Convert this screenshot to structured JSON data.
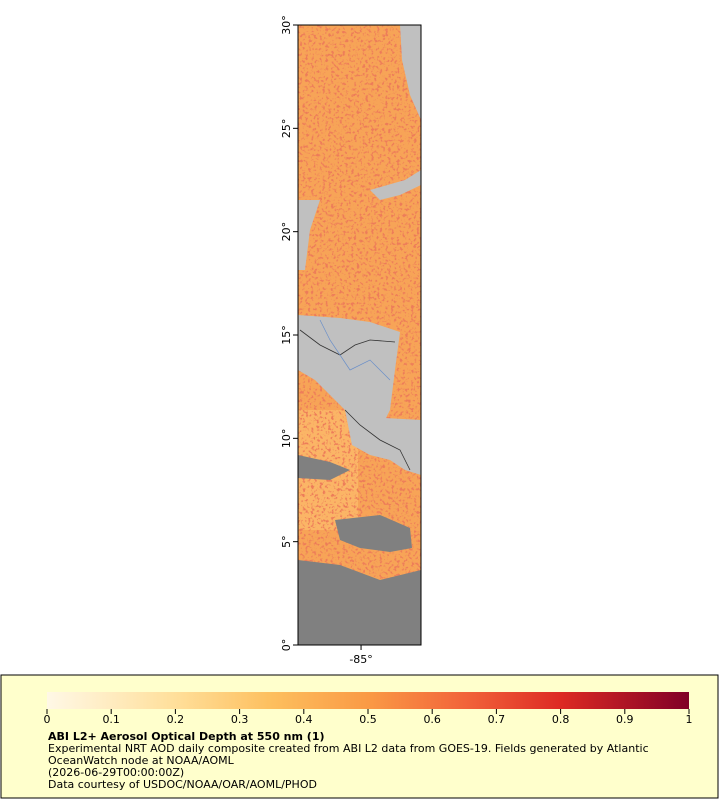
{
  "map": {
    "ylim": [
      0,
      30
    ],
    "yticks": [
      {
        "value": 0,
        "label": "0°"
      },
      {
        "value": 5,
        "label": "5°"
      },
      {
        "value": 10,
        "label": "10°"
      },
      {
        "value": 15,
        "label": "15°"
      },
      {
        "value": 20,
        "label": "20°"
      },
      {
        "value": 25,
        "label": "25°"
      },
      {
        "value": 30,
        "label": "30°"
      }
    ],
    "xlim": [
      -88.05,
      -82.1
    ],
    "xticks": [
      {
        "value": -85,
        "label": "-85°"
      }
    ]
  },
  "colorbar": {
    "range": [
      0,
      1
    ],
    "ticks": [
      0,
      0.1,
      0.2,
      0.3,
      0.4,
      0.5,
      0.6,
      0.7,
      0.8,
      0.9,
      1
    ]
  },
  "caption": {
    "title": "ABI L2+ Aerosol Optical Depth at 550 nm (1)",
    "lines": [
      "Experimental NRT AOD daily composite created from ABI L2 data from GOES-19. Fields generated by Atlantic",
      "OceanWatch node at NOAA/AOML",
      "(2026-06-29T00:00:00Z)",
      "Data courtesy of USDOC/NOAA/OAR/AOML/PHOD"
    ]
  }
}
